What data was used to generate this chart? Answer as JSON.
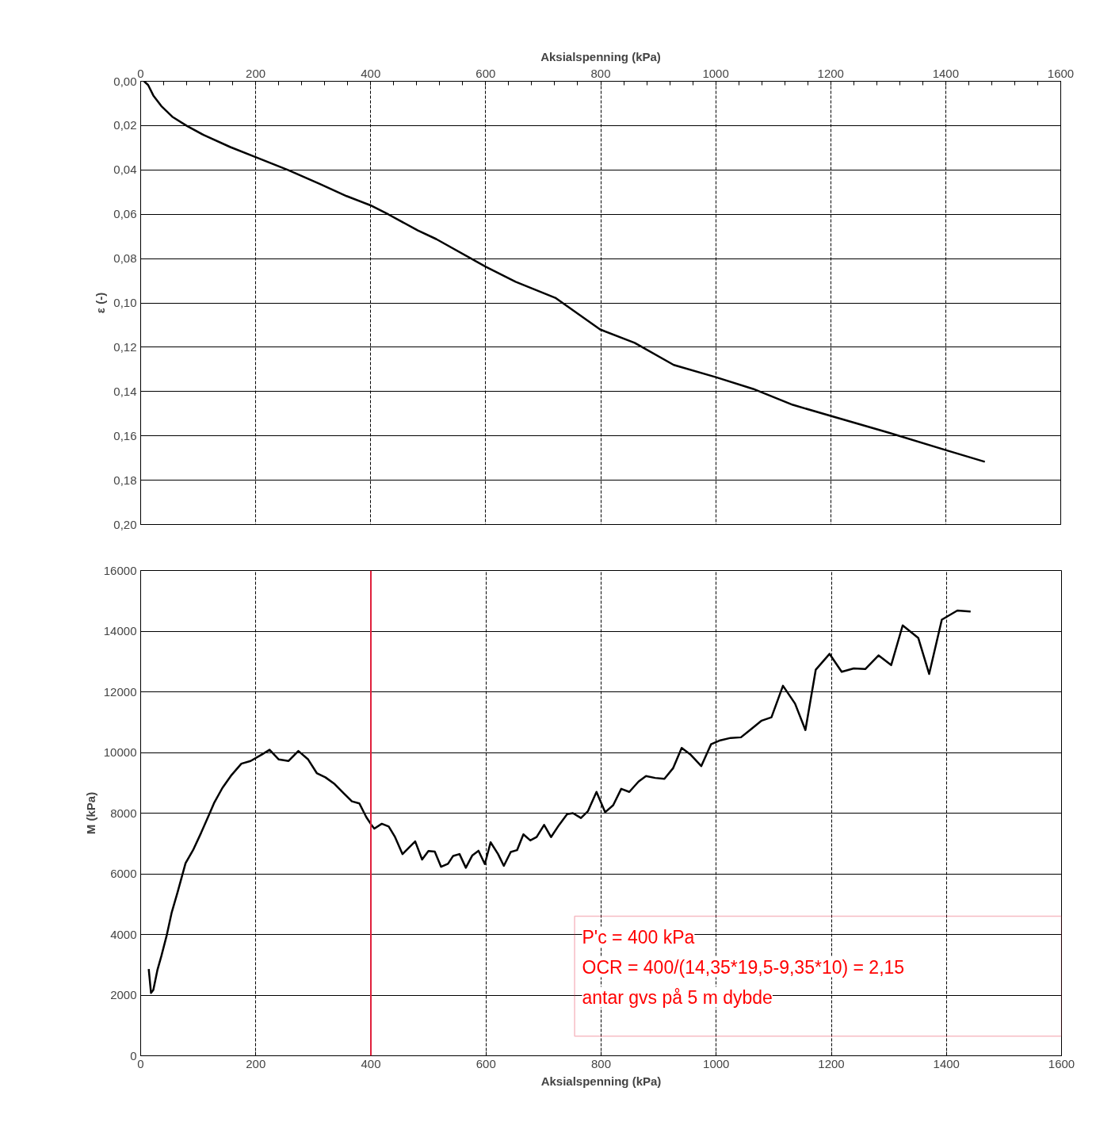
{
  "chart_data": [
    {
      "type": "line",
      "ylabel": "ε (-)",
      "xlabel": "Aksialspenning (kPa)",
      "xlim": [
        0,
        1600
      ],
      "xticks": [
        0,
        200,
        400,
        600,
        800,
        1000,
        1200,
        1400,
        1600
      ],
      "ylim": [
        0.2,
        0
      ],
      "yticks": [
        {
          "value": 0,
          "label": "0,00"
        },
        {
          "value": 0.02,
          "label": "0,02"
        },
        {
          "value": 0.04,
          "label": "0,04"
        },
        {
          "value": 0.06,
          "label": "0,06"
        },
        {
          "value": 0.08,
          "label": "0,08"
        },
        {
          "value": 0.1,
          "label": "0,10"
        },
        {
          "value": 0.12,
          "label": "0,12"
        },
        {
          "value": 0.14,
          "label": "0,14"
        },
        {
          "value": 0.16,
          "label": "0,16"
        },
        {
          "value": 0.18,
          "label": "0,18"
        },
        {
          "value": 0.2,
          "label": "0,20"
        }
      ],
      "grid": true,
      "marker": "none",
      "line_style": "solid",
      "series": [
        {
          "color": "#000000",
          "x": [
            6,
            13,
            22,
            36,
            55,
            80,
            110,
            156,
            199,
            257,
            312,
            358,
            399,
            431,
            482,
            514,
            600,
            652,
            721,
            799,
            859,
            927,
            1000,
            1065,
            1134,
            1200,
            1300,
            1400,
            1468
          ],
          "values": [
            0.0,
            0.0017,
            0.0064,
            0.0112,
            0.016,
            0.0201,
            0.0243,
            0.0297,
            0.0341,
            0.0401,
            0.0464,
            0.0518,
            0.0559,
            0.0601,
            0.0673,
            0.0712,
            0.0837,
            0.0905,
            0.0977,
            0.112,
            0.118,
            0.128,
            0.1335,
            0.1388,
            0.146,
            0.151,
            0.1585,
            0.1664,
            0.1717
          ]
        }
      ]
    },
    {
      "type": "line",
      "xlabel": "Aksialspenning (kPa)",
      "ylabel": "M (kPa)",
      "xlim": [
        0,
        1600
      ],
      "xticks": [
        0,
        200,
        400,
        600,
        800,
        1000,
        1200,
        1400,
        1600
      ],
      "ylim": [
        0,
        16000
      ],
      "yticks": [
        0,
        2000,
        4000,
        6000,
        8000,
        10000,
        12000,
        14000,
        16000
      ],
      "grid": true,
      "marker": "none",
      "line_style": "solid",
      "ref_lines": [
        {
          "axis": "x",
          "value": 400,
          "color": "#e0203c"
        }
      ],
      "annotations": [
        "P'c = 400 kPa",
        "OCR = 400/(14,35*19,5-9,35*10) = 2,15",
        "antar gvs på 5 m dybde"
      ],
      "series": [
        {
          "color": "#000000",
          "x": [
            14,
            18,
            22,
            29,
            36,
            45,
            54,
            64,
            78,
            91,
            105,
            117,
            128,
            142,
            158,
            175,
            191,
            211,
            224,
            240,
            257,
            274,
            291,
            306,
            321,
            337,
            353,
            367,
            380,
            392,
            401,
            406,
            419,
            431,
            442,
            455,
            477,
            489,
            500,
            511,
            522,
            534,
            543,
            554,
            565,
            576,
            587,
            598,
            608,
            621,
            631,
            643,
            654,
            665,
            677,
            688,
            701,
            713,
            727,
            741,
            751,
            765,
            777,
            792,
            807,
            821,
            835,
            849,
            865,
            878,
            894,
            910,
            925,
            940,
            956,
            974,
            991,
            1007,
            1025,
            1043,
            1060,
            1079,
            1096,
            1116,
            1137,
            1155,
            1173,
            1197,
            1218,
            1239,
            1259,
            1282,
            1304,
            1324,
            1351,
            1370,
            1392,
            1419,
            1442
          ],
          "values": [
            2860,
            2070,
            2170,
            2820,
            3290,
            3950,
            4730,
            5380,
            6350,
            6780,
            7350,
            7870,
            8350,
            8830,
            9260,
            9630,
            9720,
            9940,
            10090,
            9770,
            9720,
            10050,
            9770,
            9320,
            9180,
            8960,
            8650,
            8390,
            8320,
            7870,
            7610,
            7490,
            7650,
            7560,
            7210,
            6650,
            7070,
            6470,
            6750,
            6730,
            6230,
            6330,
            6590,
            6650,
            6200,
            6600,
            6760,
            6320,
            7040,
            6650,
            6260,
            6720,
            6780,
            7300,
            7100,
            7210,
            7610,
            7210,
            7610,
            7970,
            8000,
            7840,
            8060,
            8700,
            8030,
            8260,
            8800,
            8700,
            9040,
            9220,
            9160,
            9130,
            9480,
            10150,
            9920,
            9550,
            10270,
            10400,
            10480,
            10500,
            10760,
            11050,
            11160,
            12200,
            11610,
            10740,
            12730,
            13250,
            12660,
            12770,
            12750,
            13200,
            12880,
            14190,
            13780,
            12590,
            14380,
            14680,
            14650
          ]
        }
      ]
    }
  ]
}
